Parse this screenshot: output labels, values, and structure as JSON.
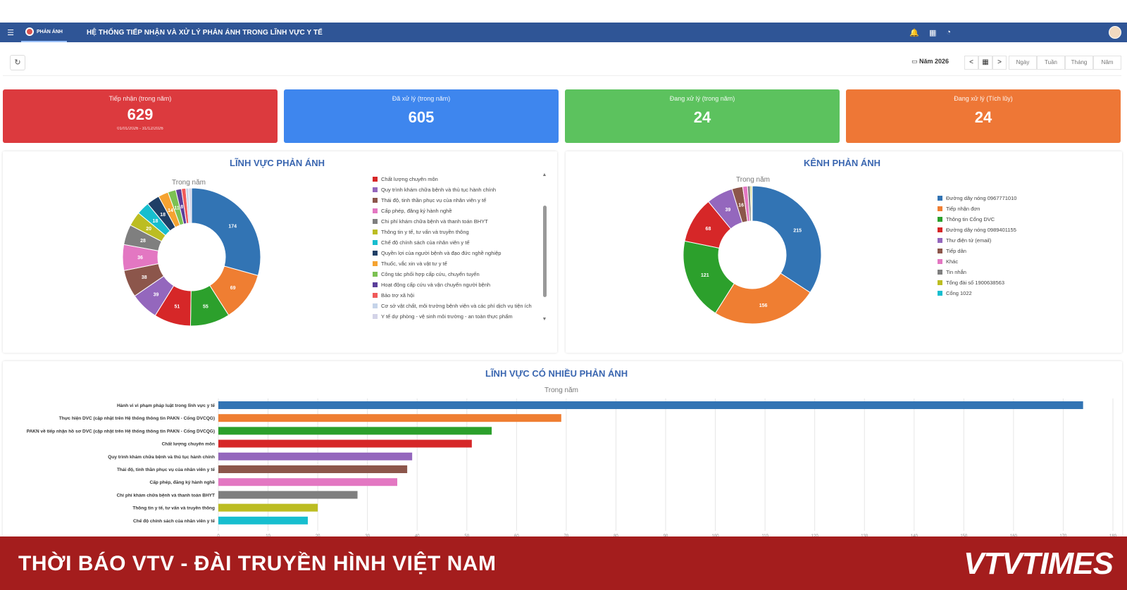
{
  "header": {
    "app_badge": "PHẢN ÁNH",
    "system_title": "HỆ THỐNG TIẾP NHẬN VÀ XỬ LÝ PHẢN ÁNH TRONG LĨNH VỰC Y TẾ"
  },
  "toolbar": {
    "year_label": "Năm 2026",
    "prev": "<",
    "calendar": "▦",
    "next": ">",
    "modes": [
      "Ngày",
      "Tuần",
      "Tháng",
      "Năm"
    ]
  },
  "stats": [
    {
      "label": "Tiếp nhận (trong năm)",
      "value": "629",
      "sub": "01/01/2026 - 31/12/2026",
      "color": "#dc3a3e"
    },
    {
      "label": "Đã xử lý (trong năm)",
      "value": "605",
      "sub": "",
      "color": "#3e86ee"
    },
    {
      "label": "Đang xử lý (trong năm)",
      "value": "24",
      "sub": "",
      "color": "#5cc25e"
    },
    {
      "label": "Đang xử lý (Tích lũy)",
      "value": "24",
      "sub": "",
      "color": "#ee7736"
    }
  ],
  "field_panel": {
    "title": "LĨNH VỰC PHẢN ÁNH",
    "subtitle": "Trong năm"
  },
  "channel_panel": {
    "title": "KÊNH PHẢN ÁNH",
    "subtitle": "Trong năm"
  },
  "bar_panel": {
    "title": "LĨNH VỰC CÓ NHIỀU PHẢN ÁNH",
    "subtitle": "Trong năm"
  },
  "footer": {
    "text": "THỜI BÁO VTV - ĐÀI TRUYỀN HÌNH VIỆT NAM",
    "brand": "VTVTIMES"
  },
  "chart_data": [
    {
      "type": "pie",
      "title": "LĨNH VỰC PHẢN ÁNH",
      "subtitle": "Trong năm",
      "legend_position": "right",
      "slices": [
        {
          "label": "Hành vi vi phạm pháp luật trong lĩnh vực y tế",
          "value": 174,
          "color": "#3274b4"
        },
        {
          "label": "Thực hiện DVC (cập nhật trên Hệ thống thông tin PAKN - Cổng DVCQG)",
          "value": 69,
          "color": "#ef7e32"
        },
        {
          "label": "PAKN về tiếp nhận hồ sơ DVC (cập nhật trên Hệ thống thông tin PAKN - Cổng DVCQG)",
          "value": 55,
          "color": "#2ca02c"
        },
        {
          "label": "Chất lượng chuyên môn",
          "value": 51,
          "color": "#d62728"
        },
        {
          "label": "Quy trình khám chữa bệnh và thủ tục hành chính",
          "value": 39,
          "color": "#9467bd"
        },
        {
          "label": "Thái độ, tinh thần phục vụ của nhân viên y tế",
          "value": 38,
          "color": "#8c564b"
        },
        {
          "label": "Cấp phép, đăng ký hành nghề",
          "value": 36,
          "color": "#e377c2"
        },
        {
          "label": "Chi phí khám chữa bệnh và thanh toán BHYT",
          "value": 28,
          "color": "#7f7f7f"
        },
        {
          "label": "Thông tin y tế, tư vấn và truyền thông",
          "value": 20,
          "color": "#bcbd22"
        },
        {
          "label": "Chế độ chính sách của nhân viên y tế",
          "value": 18,
          "color": "#17becf"
        },
        {
          "label": "Quyền lợi của người bệnh và đạo đức nghề nghiệp",
          "value": 18,
          "color": "#1f3f66"
        },
        {
          "label": "Thuốc, vắc xin và vật tư y tế",
          "value": 14,
          "color": "#f5a331"
        },
        {
          "label": "Công tác phối hợp cấp cứu, chuyển tuyến",
          "value": 11,
          "color": "#7cc152"
        },
        {
          "label": "Hoạt động cấp cứu và vận chuyển người bệnh",
          "value": 8,
          "color": "#5b3f9a"
        },
        {
          "label": "Bảo trợ xã hội",
          "value": 6,
          "color": "#f05a5a"
        },
        {
          "label": "Cơ sở vật chất, môi trường bệnh viện và các phí dịch vụ tiện ích",
          "value": 4,
          "color": "#c6d4ea"
        },
        {
          "label": "Y tế dự phòng - vệ sinh môi trường - an toàn thực phẩm",
          "value": 4,
          "color": "#d4d4e8"
        }
      ],
      "legend_items": [
        "Chất lượng chuyên môn",
        "Quy trình khám chữa bệnh và thủ tục hành chính",
        "Thái độ, tinh thần phục vụ của nhân viên y tế",
        "Cấp phép, đăng ký hành nghề",
        "Chi phí khám chữa bệnh và thanh toán BHYT",
        "Thông tin y tế, tư vấn và truyền thông",
        "Chế độ chính sách của nhân viên y tế",
        "Quyền lợi của người bệnh và đạo đức nghề nghiệp",
        "Thuốc, vắc xin và vật tư y tế",
        "Công tác phối hợp cấp cứu, chuyển tuyến",
        "Hoạt động cấp cứu và vận chuyển người bệnh",
        "Bảo trợ xã hội",
        "Cơ sở vật chất, môi trường bệnh viện và các phí dịch vụ tiện ích",
        "Y tế dự phòng - vệ sinh môi trường - an toàn thực phẩm"
      ]
    },
    {
      "type": "pie",
      "title": "KÊNH PHẢN ÁNH",
      "subtitle": "Trong năm",
      "legend_position": "right",
      "slices": [
        {
          "label": "Đường dây nóng 0967771010",
          "value": 215,
          "color": "#3274b4"
        },
        {
          "label": "Tiếp nhận đơn",
          "value": 156,
          "color": "#ef7e32"
        },
        {
          "label": "Thông tin Cổng DVC",
          "value": 121,
          "color": "#2ca02c"
        },
        {
          "label": "Đường dây nóng 0989401155",
          "value": 68,
          "color": "#d62728"
        },
        {
          "label": "Thư điện tử (email)",
          "value": 39,
          "color": "#9467bd"
        },
        {
          "label": "Tiếp dân",
          "value": 16,
          "color": "#8c564b"
        },
        {
          "label": "Khác",
          "value": 7,
          "color": "#e377c2"
        },
        {
          "label": "Tin nhắn",
          "value": 4,
          "color": "#7f7f7f"
        },
        {
          "label": "Tổng đài số 1900638563",
          "value": 2,
          "color": "#bcbd22"
        },
        {
          "label": "Cổng 1022",
          "value": 1,
          "color": "#17becf"
        }
      ]
    },
    {
      "type": "bar",
      "orientation": "horizontal",
      "title": "LĨNH VỰC CÓ NHIỀU PHẢN ÁNH",
      "subtitle": "Trong năm",
      "xlim": [
        0,
        180
      ],
      "xticks": [
        0,
        10,
        20,
        30,
        40,
        50,
        60,
        70,
        80,
        90,
        100,
        110,
        120,
        130,
        140,
        150,
        160,
        170,
        180
      ],
      "grid": true,
      "categories": [
        "Hành vi vi phạm pháp luật trong lĩnh vực y tế",
        "Thực hiện DVC (cập nhật trên Hệ thống thông tin PAKN - Cổng DVCQG)",
        "PAKN về tiếp nhận hồ sơ DVC (cập nhật trên Hệ thống thông tin PAKN - Cổng DVCQG)",
        "Chất lượng chuyên môn",
        "Quy trình khám chữa bệnh và thủ tục hành chính",
        "Thái độ, tinh thần phục vụ của nhân viên y tế",
        "Cấp phép, đăng ký hành nghề",
        "Chi phí khám chữa bệnh và thanh toán BHYT",
        "Thông tin y tế, tư vấn và truyền thông",
        "Chế độ chính sách của nhân viên y tế"
      ],
      "values": [
        174,
        69,
        55,
        51,
        39,
        38,
        36,
        28,
        20,
        18
      ],
      "colors": [
        "#3274b4",
        "#ef7e32",
        "#2ca02c",
        "#d62728",
        "#9467bd",
        "#8c564b",
        "#e377c2",
        "#7f7f7f",
        "#bcbd22",
        "#17becf"
      ]
    }
  ]
}
